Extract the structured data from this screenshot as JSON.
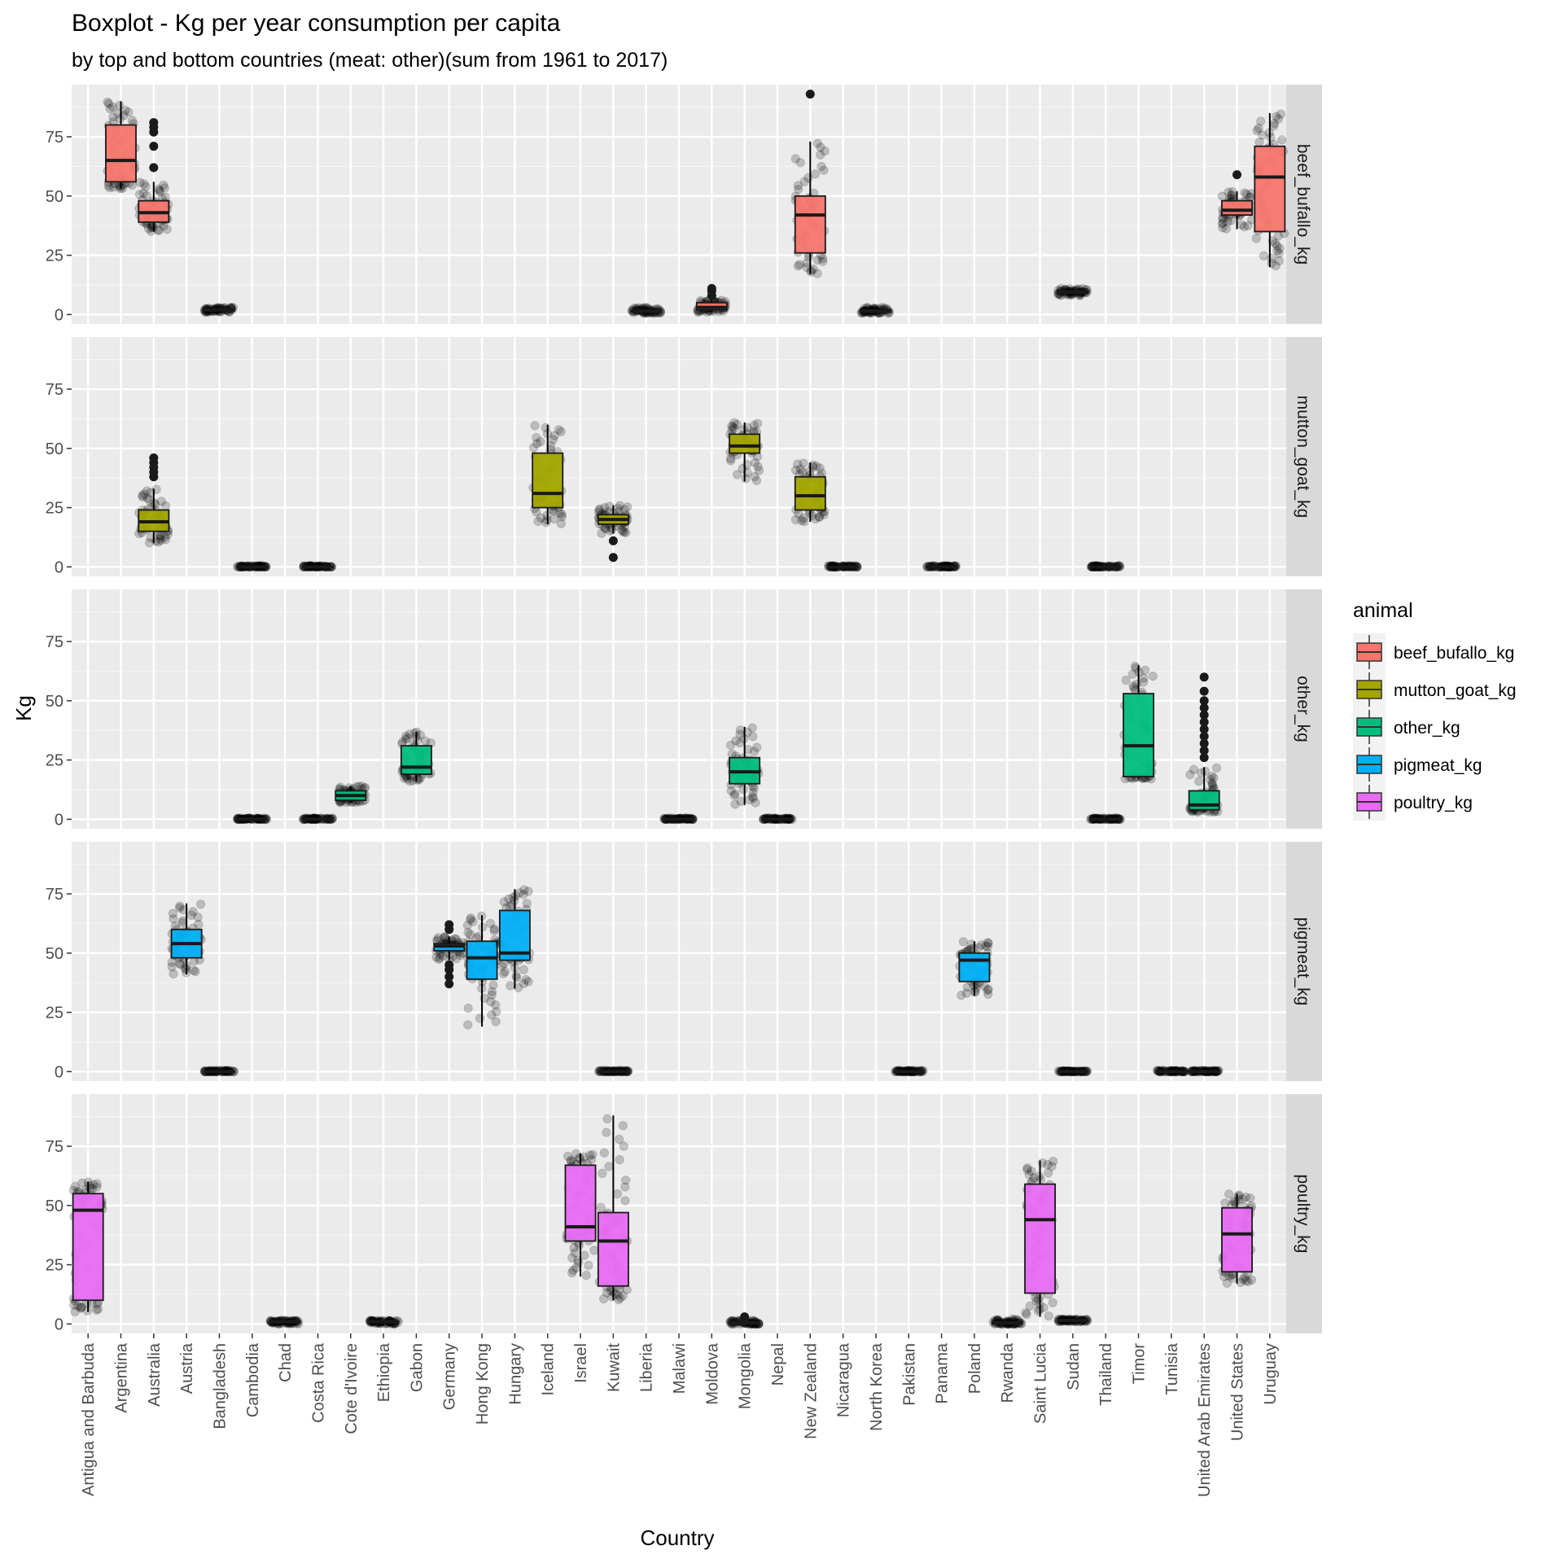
{
  "chart_data": {
    "type": "boxplot",
    "title": "Boxplot - Kg per year consumption per capita",
    "subtitle": "by top and bottom countries (meat: other)(sum from 1961 to 2017)",
    "xlabel": "Country",
    "ylabel": "Kg",
    "ylim": [
      -4,
      97
    ],
    "yticks": [
      0,
      25,
      50,
      75
    ],
    "grid": true,
    "categories": [
      "Antigua and Barbuda",
      "Argentina",
      "Australia",
      "Austria",
      "Bangladesh",
      "Cambodia",
      "Chad",
      "Costa Rica",
      "Cote d'Ivoire",
      "Ethiopia",
      "Gabon",
      "Germany",
      "Hong Kong",
      "Hungary",
      "Iceland",
      "Israel",
      "Kuwait",
      "Liberia",
      "Malawi",
      "Moldova",
      "Mongolia",
      "Nepal",
      "New Zealand",
      "Nicaragua",
      "North Korea",
      "Pakistan",
      "Panama",
      "Poland",
      "Rwanda",
      "Saint Lucia",
      "Sudan",
      "Thailand",
      "Timor",
      "Tunisia",
      "United Arab Emirates",
      "United States",
      "Uruguay"
    ],
    "legend": {
      "title": "animal",
      "position": "right",
      "entries": [
        {
          "label": "beef_bufallo_kg",
          "color": "#F8766D"
        },
        {
          "label": "mutton_goat_kg",
          "color": "#A3A500"
        },
        {
          "label": "other_kg",
          "color": "#00BF7D"
        },
        {
          "label": "pigmeat_kg",
          "color": "#00B0F6"
        },
        {
          "label": "poultry_kg",
          "color": "#E76BF3"
        }
      ]
    },
    "panels": [
      {
        "label": "beef_bufallo_kg",
        "color": "#F8766D",
        "boxes": [
          {
            "category": "Argentina",
            "min": 53,
            "q1": 56,
            "median": 65,
            "q3": 80,
            "max": 90,
            "outliers": []
          },
          {
            "category": "Australia",
            "min": 35,
            "q1": 39,
            "median": 43,
            "q3": 48,
            "max": 56,
            "outliers": [
              62,
              71,
              77,
              79,
              81
            ]
          },
          {
            "category": "Bangladesh",
            "min": 1,
            "q1": 1.5,
            "median": 2,
            "q3": 2.5,
            "max": 3,
            "outliers": []
          },
          {
            "category": "Liberia",
            "min": 0.5,
            "q1": 1,
            "median": 1.5,
            "q3": 2,
            "max": 3,
            "outliers": []
          },
          {
            "category": "Moldova",
            "min": 1,
            "q1": 2,
            "median": 3,
            "q3": 5,
            "max": 6,
            "outliers": [
              8,
              10,
              11
            ]
          },
          {
            "category": "New Zealand",
            "min": 17,
            "q1": 26,
            "median": 42,
            "q3": 50,
            "max": 73,
            "outliers": [
              93
            ]
          },
          {
            "category": "North Korea",
            "min": 0.5,
            "q1": 1,
            "median": 1.5,
            "q3": 2,
            "max": 3,
            "outliers": []
          },
          {
            "category": "Sudan",
            "min": 8,
            "q1": 9,
            "median": 9.5,
            "q3": 10,
            "max": 11,
            "outliers": []
          },
          {
            "category": "United States",
            "min": 36,
            "q1": 42,
            "median": 44,
            "q3": 48,
            "max": 52,
            "outliers": [
              59
            ]
          },
          {
            "category": "Uruguay",
            "min": 20,
            "q1": 35,
            "median": 58,
            "q3": 71,
            "max": 85,
            "outliers": []
          }
        ]
      },
      {
        "label": "mutton_goat_kg",
        "color": "#A3A500",
        "boxes": [
          {
            "category": "Australia",
            "min": 10,
            "q1": 15,
            "median": 19,
            "q3": 24,
            "max": 33,
            "outliers": [
              38,
              40,
              42,
              44,
              46
            ]
          },
          {
            "category": "Cambodia",
            "min": 0,
            "q1": 0,
            "median": 0,
            "q3": 0.3,
            "max": 0.5,
            "outliers": []
          },
          {
            "category": "Costa Rica",
            "min": 0,
            "q1": 0,
            "median": 0,
            "q3": 0.3,
            "max": 0.5,
            "outliers": []
          },
          {
            "category": "Iceland",
            "min": 18,
            "q1": 25,
            "median": 31,
            "q3": 48,
            "max": 60,
            "outliers": []
          },
          {
            "category": "Kuwait",
            "min": 14,
            "q1": 18,
            "median": 20,
            "q3": 22,
            "max": 26,
            "outliers": [
              4,
              11
            ]
          },
          {
            "category": "Mongolia",
            "min": 36,
            "q1": 48,
            "median": 51,
            "q3": 56,
            "max": 61,
            "outliers": []
          },
          {
            "category": "New Zealand",
            "min": 19,
            "q1": 24,
            "median": 30,
            "q3": 38,
            "max": 44,
            "outliers": []
          },
          {
            "category": "Nicaragua",
            "min": 0,
            "q1": 0,
            "median": 0,
            "q3": 0.3,
            "max": 0.5,
            "outliers": []
          },
          {
            "category": "Panama",
            "min": 0,
            "q1": 0,
            "median": 0,
            "q3": 0.3,
            "max": 0.5,
            "outliers": []
          },
          {
            "category": "Thailand",
            "min": 0,
            "q1": 0,
            "median": 0,
            "q3": 0.3,
            "max": 0.5,
            "outliers": []
          }
        ]
      },
      {
        "label": "other_kg",
        "color": "#00BF7D",
        "boxes": [
          {
            "category": "Cambodia",
            "min": 0,
            "q1": 0,
            "median": 0,
            "q3": 0.3,
            "max": 0.5,
            "outliers": []
          },
          {
            "category": "Costa Rica",
            "min": 0,
            "q1": 0,
            "median": 0,
            "q3": 0.3,
            "max": 0.5,
            "outliers": []
          },
          {
            "category": "Cote d'Ivoire",
            "min": 7,
            "q1": 8,
            "median": 10,
            "q3": 12,
            "max": 14,
            "outliers": []
          },
          {
            "category": "Gabon",
            "min": 16,
            "q1": 19,
            "median": 22,
            "q3": 31,
            "max": 37,
            "outliers": []
          },
          {
            "category": "Malawi",
            "min": 0,
            "q1": 0,
            "median": 0,
            "q3": 0.3,
            "max": 0.5,
            "outliers": []
          },
          {
            "category": "Mongolia",
            "min": 6,
            "q1": 15,
            "median": 20,
            "q3": 26,
            "max": 39,
            "outliers": []
          },
          {
            "category": "Nepal",
            "min": 0,
            "q1": 0,
            "median": 0,
            "q3": 0.3,
            "max": 0.5,
            "outliers": []
          },
          {
            "category": "Thailand",
            "min": 0,
            "q1": 0,
            "median": 0,
            "q3": 0.3,
            "max": 0.5,
            "outliers": []
          },
          {
            "category": "Timor",
            "min": 17,
            "q1": 18,
            "median": 31,
            "q3": 53,
            "max": 65,
            "outliers": []
          },
          {
            "category": "United Arab Emirates",
            "min": 3,
            "q1": 4,
            "median": 6,
            "q3": 12,
            "max": 22,
            "outliers": [
              26,
              29,
              32,
              35,
              38,
              41,
              44,
              47,
              50,
              54,
              60
            ]
          }
        ]
      },
      {
        "label": "pigmeat_kg",
        "color": "#00B0F6",
        "boxes": [
          {
            "category": "Austria",
            "min": 41,
            "q1": 48,
            "median": 54,
            "q3": 60,
            "max": 71,
            "outliers": []
          },
          {
            "category": "Bangladesh",
            "min": 0,
            "q1": 0,
            "median": 0,
            "q3": 0.3,
            "max": 0.5,
            "outliers": []
          },
          {
            "category": "Germany",
            "min": 47,
            "q1": 51,
            "median": 53,
            "q3": 54,
            "max": 57,
            "outliers": [
              37,
              40,
              43,
              45,
              60,
              62
            ]
          },
          {
            "category": "Hong Kong",
            "min": 19,
            "q1": 39,
            "median": 48,
            "q3": 55,
            "max": 66,
            "outliers": []
          },
          {
            "category": "Hungary",
            "min": 35,
            "q1": 47,
            "median": 50,
            "q3": 68,
            "max": 77,
            "outliers": []
          },
          {
            "category": "Kuwait",
            "min": 0,
            "q1": 0,
            "median": 0,
            "q3": 0.3,
            "max": 0.5,
            "outliers": []
          },
          {
            "category": "Pakistan",
            "min": 0,
            "q1": 0,
            "median": 0,
            "q3": 0.3,
            "max": 0.5,
            "outliers": []
          },
          {
            "category": "Poland",
            "min": 32,
            "q1": 38,
            "median": 47,
            "q3": 50,
            "max": 55,
            "outliers": []
          },
          {
            "category": "Sudan",
            "min": 0,
            "q1": 0,
            "median": 0,
            "q3": 0.2,
            "max": 0.3,
            "outliers": []
          },
          {
            "category": "Tunisia",
            "min": 0,
            "q1": 0,
            "median": 0,
            "q3": 0.3,
            "max": 0.5,
            "outliers": []
          },
          {
            "category": "United Arab Emirates",
            "min": 0,
            "q1": 0,
            "median": 0,
            "q3": 0.3,
            "max": 0.5,
            "outliers": []
          }
        ]
      },
      {
        "label": "poultry_kg",
        "color": "#E76BF3",
        "boxes": [
          {
            "category": "Antigua and Barbuda",
            "min": 5,
            "q1": 10,
            "median": 48,
            "q3": 55,
            "max": 60,
            "outliers": []
          },
          {
            "category": "Chad",
            "min": 0,
            "q1": 0.5,
            "median": 1,
            "q3": 1.2,
            "max": 1.5,
            "outliers": []
          },
          {
            "category": "Ethiopia",
            "min": 0,
            "q1": 0.5,
            "median": 1,
            "q3": 1.2,
            "max": 1.5,
            "outliers": []
          },
          {
            "category": "Israel",
            "min": 20,
            "q1": 35,
            "median": 41,
            "q3": 67,
            "max": 72,
            "outliers": []
          },
          {
            "category": "Kuwait",
            "min": 10,
            "q1": 16,
            "median": 35,
            "q3": 47,
            "max": 88,
            "outliers": []
          },
          {
            "category": "Mongolia",
            "min": 0,
            "q1": 0,
            "median": 0.5,
            "q3": 1,
            "max": 1.5,
            "outliers": [
              2.5,
              3
            ]
          },
          {
            "category": "Rwanda",
            "min": 0,
            "q1": 0,
            "median": 0.5,
            "q3": 1,
            "max": 2,
            "outliers": []
          },
          {
            "category": "Saint Lucia",
            "min": 3,
            "q1": 13,
            "median": 44,
            "q3": 59,
            "max": 69,
            "outliers": []
          },
          {
            "category": "Sudan",
            "min": 1,
            "q1": 1.2,
            "median": 1.5,
            "q3": 1.8,
            "max": 2,
            "outliers": []
          },
          {
            "category": "United States",
            "min": 17,
            "q1": 22,
            "median": 38,
            "q3": 49,
            "max": 55,
            "outliers": []
          }
        ]
      }
    ]
  }
}
